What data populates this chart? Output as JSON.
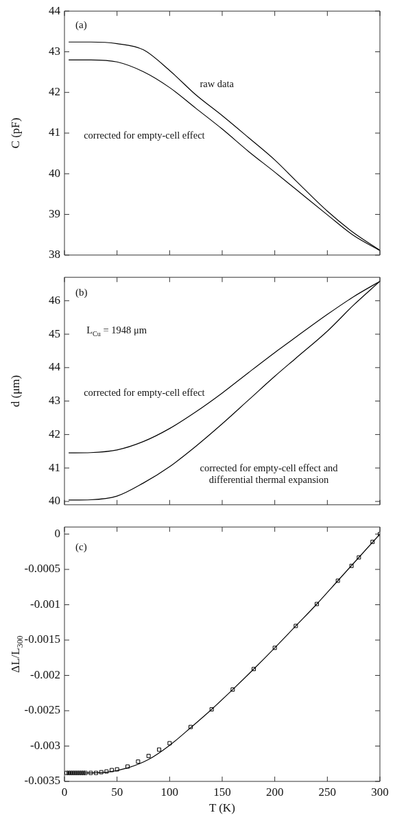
{
  "chart_data": [
    {
      "type": "line",
      "ylabel": "C (pF)",
      "xlim": [
        0,
        300
      ],
      "xticks": [
        0,
        50,
        100,
        150,
        200,
        250,
        300
      ],
      "ylim": [
        38,
        44
      ],
      "yticks": [
        38,
        39,
        40,
        41,
        42,
        43,
        44
      ],
      "tick_labels": "y",
      "grid": false,
      "legend": false,
      "marker": "none",
      "line_style": "solid",
      "x": [
        4,
        25,
        50,
        75,
        100,
        125,
        150,
        175,
        200,
        220,
        250,
        275,
        300
      ],
      "series": [
        {
          "color": "#000000",
          "values": [
            43.24,
            43.24,
            43.2,
            43.05,
            42.54,
            41.94,
            41.43,
            40.89,
            40.34,
            39.83,
            39.08,
            38.55,
            38.12
          ]
        },
        {
          "color": "#000000",
          "values": [
            42.8,
            42.8,
            42.75,
            42.51,
            42.12,
            41.61,
            41.1,
            40.55,
            40.04,
            39.62,
            38.99,
            38.48,
            38.11
          ]
        }
      ],
      "annotations": [
        "(a)",
        "raw data",
        "corrected for empty-cell effect"
      ]
    },
    {
      "type": "line",
      "ylabel": "d (μm)",
      "xlim": [
        0,
        300
      ],
      "xticks": [
        0,
        50,
        100,
        150,
        200,
        250,
        300
      ],
      "ylim": [
        39.9,
        46.7
      ],
      "yticks": [
        40,
        41,
        42,
        43,
        44,
        45,
        46
      ],
      "tick_labels": "y",
      "grid": false,
      "legend": false,
      "marker": "none",
      "line_style": "solid",
      "x": [
        4,
        25,
        50,
        75,
        100,
        125,
        150,
        175,
        200,
        220,
        250,
        275,
        300
      ],
      "series": [
        {
          "color": "#000000",
          "values": [
            41.45,
            41.46,
            41.54,
            41.79,
            42.18,
            42.68,
            43.24,
            43.85,
            44.45,
            44.91,
            45.59,
            46.12,
            46.58
          ]
        },
        {
          "color": "#000000",
          "values": [
            40.04,
            40.05,
            40.16,
            40.55,
            41.04,
            41.65,
            42.32,
            43.03,
            43.74,
            44.28,
            45.09,
            45.87,
            46.58
          ]
        }
      ],
      "annotations": [
        "(b)",
        "L$_{Cu}$ = 1948 μm",
        "corrected for empty-cell effect",
        "corrected for empty-cell effect and\ndifferential thermal expansion"
      ]
    },
    {
      "type": "scatter",
      "xlabel": "T (K)",
      "ylabel": "ΔL/L$_{300}$",
      "xlim": [
        0,
        300
      ],
      "xticks": [
        0,
        50,
        100,
        150,
        200,
        250,
        300
      ],
      "ylim": [
        -0.0035,
        0.0001
      ],
      "yticks": [
        -0.0035,
        -0.003,
        -0.0025,
        -0.002,
        -0.0015,
        -0.001,
        -0.0005,
        0
      ],
      "grid": false,
      "legend": false,
      "marker": "square",
      "x": [
        2,
        4,
        6,
        8,
        10,
        12,
        14,
        16,
        18,
        20,
        25,
        30,
        35,
        40,
        45,
        50,
        60,
        70,
        80,
        90,
        100,
        120,
        140,
        160,
        180,
        200,
        220,
        240,
        260,
        273,
        280,
        293,
        300
      ],
      "series": [
        {
          "color": "#000000",
          "values": [
            -0.00338,
            -0.00338,
            -0.00338,
            -0.00338,
            -0.00338,
            -0.00338,
            -0.00338,
            -0.00338,
            -0.00338,
            -0.00338,
            -0.00338,
            -0.00338,
            -0.00337,
            -0.00336,
            -0.00334,
            -0.00333,
            -0.00329,
            -0.00322,
            -0.00314,
            -0.00305,
            -0.00296,
            -0.00273,
            -0.00248,
            -0.0022,
            -0.00191,
            -0.00161,
            -0.0013,
            -0.00099,
            -0.00066,
            -0.00045,
            -0.00033,
            -0.00011,
            0
          ]
        },
        {
          "type": "line",
          "marker": "none",
          "line_style": "solid",
          "color": "#000000",
          "x": [
            2,
            20,
            40,
            60,
            80,
            100,
            120,
            140,
            160,
            180,
            200,
            220,
            240,
            260,
            280,
            300
          ],
          "values": [
            -0.00338,
            -0.00338,
            -0.00337,
            -0.00331,
            -0.00319,
            -0.00299,
            -0.00274,
            -0.00248,
            -0.0022,
            -0.00191,
            -0.00161,
            -0.0013,
            -0.00099,
            -0.00066,
            -0.00033,
            0
          ]
        }
      ],
      "annotations": [
        "(c)"
      ]
    }
  ]
}
